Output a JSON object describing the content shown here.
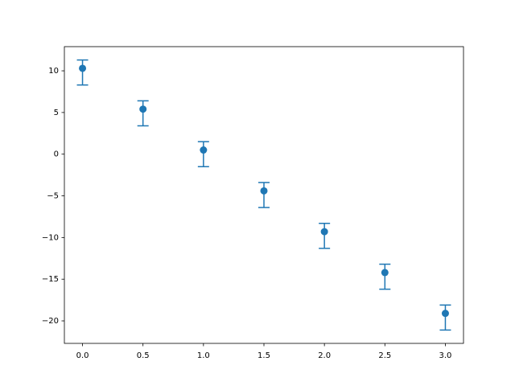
{
  "chart_data": {
    "type": "errorbar",
    "x": [
      0,
      0.5,
      1,
      1.5,
      2,
      2.5,
      3
    ],
    "series": [
      {
        "color": "#1f77b4",
        "values": [
          10.3,
          5.4,
          0.5,
          -4.4,
          -9.3,
          -14.2,
          -19.1
        ],
        "yerr_lower": [
          2,
          2,
          2,
          2,
          2,
          2,
          2
        ],
        "yerr_upper": [
          1,
          1,
          1,
          1,
          1,
          1,
          1
        ]
      }
    ],
    "xlim": [
      -0.15,
      3.15
    ],
    "ylim": [
      -22.7,
      12.9
    ],
    "xticks": [
      {
        "value": 0,
        "label": "0.0"
      },
      0.5,
      {
        "value": 1,
        "label": "1.0"
      },
      1.5,
      {
        "value": 2,
        "label": "2.0"
      },
      2.5,
      {
        "value": 3,
        "label": "3.0"
      }
    ],
    "yticks": [
      {
        "value": -20,
        "label": "−20"
      },
      {
        "value": -15,
        "label": "−15"
      },
      {
        "value": -10,
        "label": "−10"
      },
      {
        "value": -5,
        "label": "−5"
      },
      0,
      5,
      10
    ],
    "grid": false
  }
}
